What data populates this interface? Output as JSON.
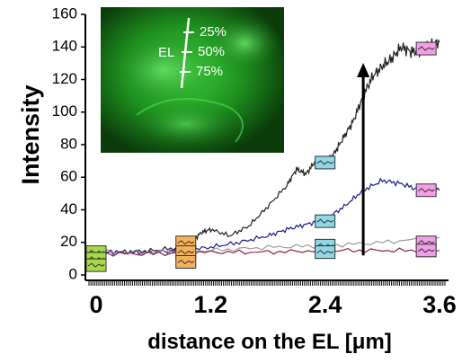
{
  "chart_data": {
    "type": "line",
    "xlabel": "distance on the EL [μm]",
    "ylabel": "Intensity",
    "xlim": [
      0,
      3.6
    ],
    "ylim": [
      0,
      160
    ],
    "x_ticks": [
      {
        "value": 0,
        "label": "0"
      },
      {
        "value": 1.2,
        "label": "1.2"
      },
      {
        "value": 2.4,
        "label": "2.4"
      },
      {
        "value": 3.6,
        "label": "3.6"
      }
    ],
    "y_ticks": [
      {
        "value": 0,
        "label": "0"
      },
      {
        "value": 20,
        "label": "20"
      },
      {
        "value": 40,
        "label": "40"
      },
      {
        "value": 60,
        "label": "60"
      },
      {
        "value": 80,
        "label": "80"
      },
      {
        "value": 100,
        "label": "100"
      },
      {
        "value": 120,
        "label": "120"
      },
      {
        "value": 140,
        "label": "140"
      },
      {
        "value": 160,
        "label": "160"
      }
    ],
    "series": [
      {
        "color": "#222222",
        "x": [
          0,
          0.3,
          0.6,
          0.9,
          1.0,
          1.1,
          1.2,
          1.4,
          1.6,
          1.8,
          2.0,
          2.1,
          2.2,
          2.3,
          2.4,
          2.5,
          2.6,
          2.7,
          2.8,
          2.9,
          3.0,
          3.1,
          3.2,
          3.3,
          3.4,
          3.5,
          3.6
        ],
        "y": [
          14,
          14,
          15,
          17,
          20,
          26,
          28,
          24,
          30,
          42,
          55,
          65,
          62,
          70,
          68,
          75,
          85,
          95,
          110,
          122,
          128,
          133,
          140,
          137,
          138,
          141,
          143
        ]
      },
      {
        "color": "#1a1a8c",
        "x": [
          0,
          0.3,
          0.6,
          0.9,
          1.2,
          1.5,
          1.8,
          2.0,
          2.2,
          2.4,
          2.6,
          2.8,
          3.0,
          3.2,
          3.4,
          3.6
        ],
        "y": [
          14,
          14,
          14,
          15,
          17,
          20,
          24,
          28,
          31,
          34,
          42,
          52,
          58,
          56,
          52,
          52
        ]
      },
      {
        "color": "#9a9a9a",
        "x": [
          0,
          0.6,
          1.2,
          1.8,
          2.4,
          3.0,
          3.6
        ],
        "y": [
          14,
          14,
          15,
          17,
          18,
          20,
          23
        ]
      },
      {
        "color": "#8c1a4a",
        "x": [
          0,
          0.6,
          1.2,
          1.8,
          2.4,
          3.0,
          3.6
        ],
        "y": [
          13,
          13,
          14,
          14,
          15,
          15,
          15
        ]
      }
    ],
    "markers": [
      {
        "x": 0.0,
        "y": 14,
        "color": "#a8d84a"
      },
      {
        "x": 0.0,
        "y": 10,
        "color": "#a8d84a"
      },
      {
        "x": 0.0,
        "y": 6,
        "color": "#a8d84a"
      },
      {
        "x": 0.94,
        "y": 20,
        "color": "#f5b25a"
      },
      {
        "x": 0.94,
        "y": 14,
        "color": "#f5b25a"
      },
      {
        "x": 0.94,
        "y": 8,
        "color": "#f5b25a"
      },
      {
        "x": 2.4,
        "y": 69,
        "color": "#8ed8e6"
      },
      {
        "x": 2.4,
        "y": 33,
        "color": "#8ed8e6"
      },
      {
        "x": 2.4,
        "y": 18,
        "color": "#8ed8e6"
      },
      {
        "x": 2.4,
        "y": 14,
        "color": "#8ed8e6"
      },
      {
        "x": 3.46,
        "y": 139,
        "color": "#f29ee6"
      },
      {
        "x": 3.46,
        "y": 52,
        "color": "#f29ee6"
      },
      {
        "x": 3.46,
        "y": 20,
        "color": "#f29ee6"
      },
      {
        "x": 3.46,
        "y": 15,
        "color": "#f29ee6"
      }
    ],
    "arrow": {
      "x": 2.8,
      "y_start": 12,
      "y_end": 128
    },
    "inset": {
      "el_label": "EL",
      "markers": [
        "25%",
        "50%",
        "75%"
      ]
    }
  }
}
